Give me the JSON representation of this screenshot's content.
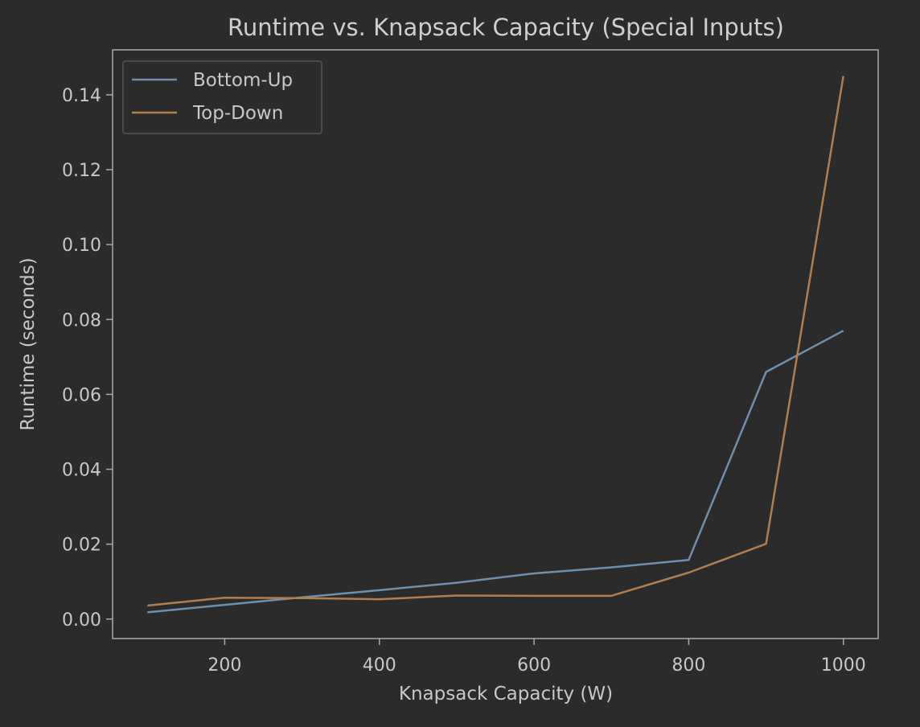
{
  "chart_data": {
    "type": "line",
    "title": "Runtime vs. Knapsack Capacity (Special Inputs)",
    "xlabel": "Knapsack Capacity (W)",
    "ylabel": "Runtime (seconds)",
    "x": [
      100,
      200,
      300,
      400,
      500,
      600,
      700,
      800,
      900,
      1000
    ],
    "xlim": [
      55,
      1045
    ],
    "ylim": [
      -0.0052,
      0.152
    ],
    "xticks": [
      200,
      400,
      600,
      800,
      1000
    ],
    "xtick_labels": [
      "200",
      "400",
      "600",
      "800",
      "1000"
    ],
    "yticks": [
      0.0,
      0.02,
      0.04,
      0.06,
      0.08,
      0.1,
      0.12,
      0.14
    ],
    "ytick_labels": [
      "0.00",
      "0.02",
      "0.04",
      "0.06",
      "0.08",
      "0.10",
      "0.12",
      "0.14"
    ],
    "grid": false,
    "legend_position": "top-left",
    "series": [
      {
        "name": "Bottom-Up",
        "color": "#6f8fad",
        "values": [
          0.0018,
          0.0038,
          0.0058,
          0.0077,
          0.0097,
          0.0122,
          0.0138,
          0.0158,
          0.066,
          0.077
        ]
      },
      {
        "name": "Top-Down",
        "color": "#b07e50",
        "values": [
          0.0036,
          0.0057,
          0.0056,
          0.0053,
          0.0063,
          0.0062,
          0.0062,
          0.0124,
          0.0201,
          0.145
        ]
      }
    ],
    "colors": {
      "background": "#2b2b2b",
      "axes": "#aaaaaa",
      "text": "#c8c8c8"
    }
  }
}
